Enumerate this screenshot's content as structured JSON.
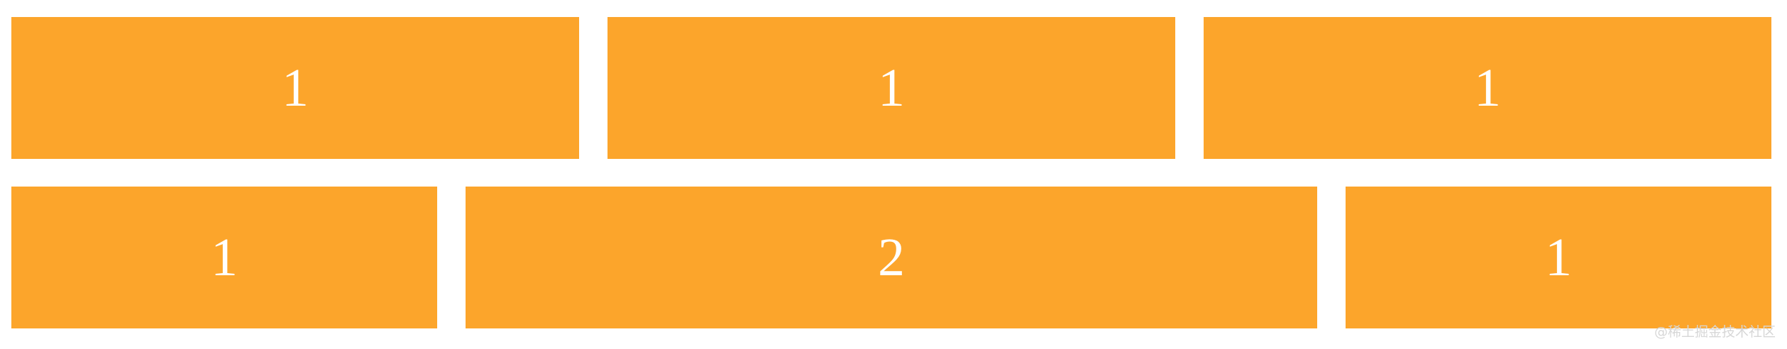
{
  "colors": {
    "cell_bg": "#FCA52B",
    "cell_text": "#FFFFFF"
  },
  "rows": [
    {
      "cells": [
        {
          "label": "1",
          "flex": 1
        },
        {
          "label": "1",
          "flex": 1
        },
        {
          "label": "1",
          "flex": 1
        }
      ]
    },
    {
      "cells": [
        {
          "label": "1",
          "flex": 1
        },
        {
          "label": "2",
          "flex": 2
        },
        {
          "label": "1",
          "flex": 1
        }
      ]
    }
  ],
  "watermark": "@稀土掘金技术社区"
}
